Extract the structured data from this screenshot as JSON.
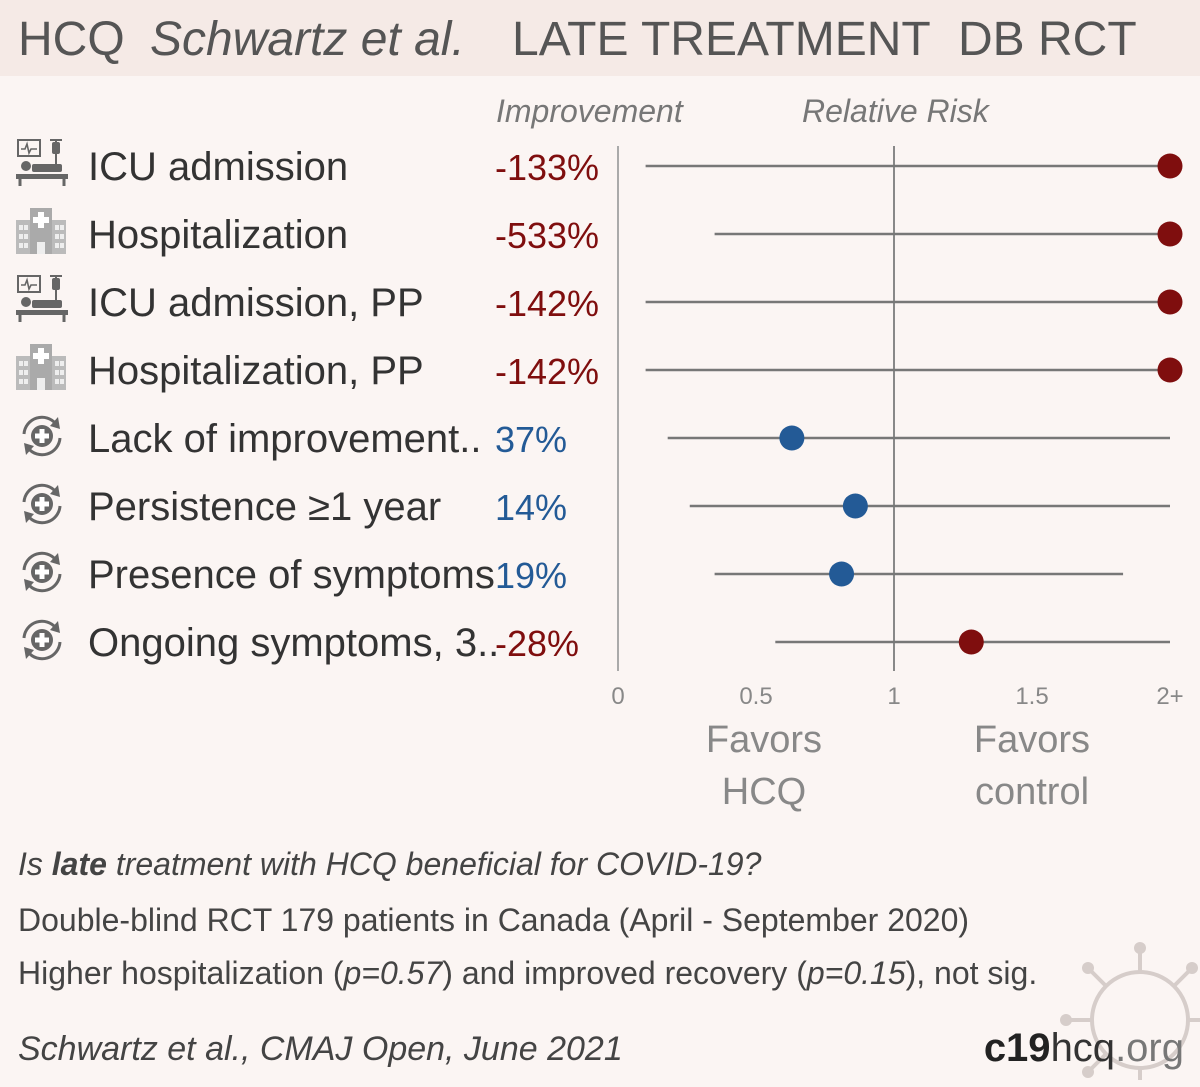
{
  "title": {
    "drug": "HCQ",
    "study": "Schwartz et al.",
    "stage": "LATE TREATMENT",
    "design": "DB RCT"
  },
  "header": {
    "improvement": "Improvement",
    "relative_risk": "Relative Risk"
  },
  "colors": {
    "harm": "#7f0e0e",
    "benefit": "#235a96",
    "line": "#777777",
    "axis": "#aaaaaa"
  },
  "chart_data": {
    "type": "forest",
    "xlim": [
      0,
      2
    ],
    "ticks": [
      {
        "v": 0,
        "label": "0"
      },
      {
        "v": 0.5,
        "label": "0.5"
      },
      {
        "v": 1,
        "label": "1"
      },
      {
        "v": 1.5,
        "label": "1.5"
      },
      {
        "v": 2,
        "label": "2+"
      }
    ],
    "reference_line": 1,
    "favors_left": [
      "Favors",
      "HCQ"
    ],
    "favors_right": [
      "Favors",
      "control"
    ],
    "rows": [
      {
        "label": "ICU admission",
        "icon": "icu-icon",
        "improvement": "-133%",
        "rr": 2.33,
        "lo": 0.1,
        "hi": 2.0,
        "dir": "harm"
      },
      {
        "label": "Hospitalization",
        "icon": "hospital-icon",
        "improvement": "-533%",
        "rr": 6.33,
        "lo": 0.35,
        "hi": 2.0,
        "dir": "harm"
      },
      {
        "label": "ICU admission, PP",
        "icon": "icu-icon",
        "improvement": "-142%",
        "rr": 2.42,
        "lo": 0.1,
        "hi": 2.0,
        "dir": "harm"
      },
      {
        "label": "Hospitalization, PP",
        "icon": "hospital-icon",
        "improvement": "-142%",
        "rr": 2.42,
        "lo": 0.1,
        "hi": 2.0,
        "dir": "harm"
      },
      {
        "label": "Lack of improvement..",
        "icon": "recovery-icon",
        "improvement": "37%",
        "rr": 0.63,
        "lo": 0.18,
        "hi": 2.0,
        "dir": "benefit"
      },
      {
        "label": "Persistence ≥1 year",
        "icon": "recovery-icon",
        "improvement": "14%",
        "rr": 0.86,
        "lo": 0.26,
        "hi": 2.0,
        "dir": "benefit"
      },
      {
        "label": "Presence of symptoms",
        "icon": "recovery-icon",
        "improvement": "19%",
        "rr": 0.81,
        "lo": 0.35,
        "hi": 1.83,
        "dir": "benefit"
      },
      {
        "label": "Ongoing symptoms, 3..",
        "icon": "recovery-icon",
        "improvement": "-28%",
        "rr": 1.28,
        "lo": 0.57,
        "hi": 2.0,
        "dir": "harm"
      }
    ]
  },
  "footer": {
    "q_pre": "Is ",
    "q_bold": "late",
    "q_post": " treatment with HCQ beneficial for COVID-19?",
    "line2": "Double-blind RCT 179 patients in Canada (April - September 2020)",
    "l3_a": "Higher hospitalization (",
    "l3_p1": "p=0.57",
    "l3_b": ") and improved recovery (",
    "l3_p2": "p=0.15",
    "l3_c": "), not sig.",
    "citation": "Schwartz et al., CMAJ Open, June 2021",
    "brand_bold": "c19",
    "brand_mid": "hcq",
    "brand_tld": ".org"
  }
}
